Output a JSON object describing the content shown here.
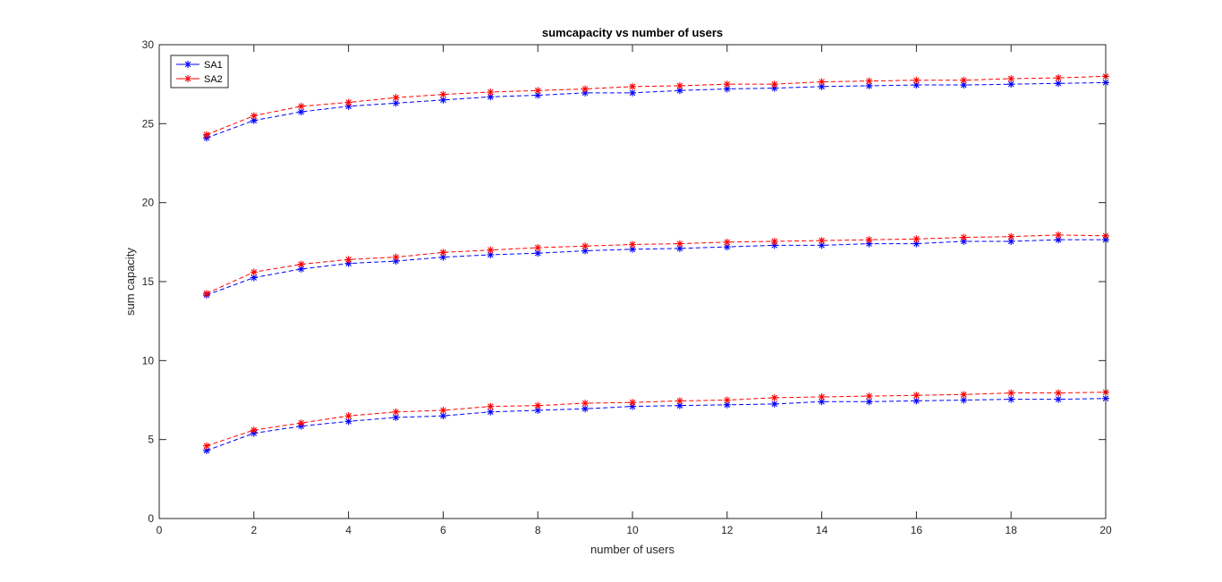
{
  "chart_data": {
    "type": "line",
    "title": "sumcapacity vs number of users",
    "xlabel": "number of users",
    "ylabel": "sum capacity",
    "xlim": [
      0,
      20
    ],
    "ylim": [
      0,
      30
    ],
    "xticks": [
      "0",
      "2",
      "4",
      "6",
      "8",
      "10",
      "12",
      "14",
      "16",
      "18",
      "20"
    ],
    "yticks": [
      "0",
      "5",
      "10",
      "15",
      "20",
      "25",
      "30"
    ],
    "grid": false,
    "legend_position": "top-left",
    "x": [
      1,
      2,
      3,
      4,
      5,
      6,
      7,
      8,
      9,
      10,
      11,
      12,
      13,
      14,
      15,
      16,
      17,
      18,
      19,
      20
    ],
    "series": [
      {
        "name": "SA1",
        "color": "#0000ff",
        "marker": "asterisk",
        "linestyle": "dashed",
        "group": "low",
        "values": [
          4.3,
          5.4,
          5.85,
          6.15,
          6.4,
          6.5,
          6.75,
          6.85,
          6.95,
          7.1,
          7.15,
          7.2,
          7.25,
          7.4,
          7.4,
          7.45,
          7.5,
          7.55,
          7.55,
          7.6
        ]
      },
      {
        "name": "SA2",
        "color": "#ff0000",
        "marker": "asterisk",
        "linestyle": "dashed",
        "group": "low",
        "values": [
          4.6,
          5.6,
          6.05,
          6.5,
          6.75,
          6.85,
          7.1,
          7.15,
          7.3,
          7.35,
          7.45,
          7.5,
          7.65,
          7.7,
          7.75,
          7.8,
          7.85,
          7.95,
          7.95,
          8.0
        ]
      },
      {
        "name": "SA1",
        "color": "#0000ff",
        "marker": "asterisk",
        "linestyle": "dashed",
        "group": "mid",
        "values": [
          14.15,
          15.25,
          15.8,
          16.15,
          16.3,
          16.55,
          16.7,
          16.8,
          16.95,
          17.05,
          17.1,
          17.2,
          17.3,
          17.3,
          17.4,
          17.4,
          17.55,
          17.55,
          17.65,
          17.65
        ]
      },
      {
        "name": "SA2",
        "color": "#ff0000",
        "marker": "asterisk",
        "linestyle": "dashed",
        "group": "mid",
        "values": [
          14.25,
          15.6,
          16.1,
          16.4,
          16.55,
          16.85,
          17.0,
          17.15,
          17.25,
          17.35,
          17.4,
          17.5,
          17.55,
          17.6,
          17.65,
          17.7,
          17.8,
          17.85,
          17.95,
          17.9
        ]
      },
      {
        "name": "SA1",
        "color": "#0000ff",
        "marker": "asterisk",
        "linestyle": "dashed",
        "group": "high",
        "values": [
          24.1,
          25.2,
          25.75,
          26.1,
          26.3,
          26.5,
          26.7,
          26.8,
          26.95,
          26.95,
          27.1,
          27.2,
          27.25,
          27.35,
          27.4,
          27.45,
          27.45,
          27.5,
          27.55,
          27.6
        ]
      },
      {
        "name": "SA2",
        "color": "#ff0000",
        "marker": "asterisk",
        "linestyle": "dashed",
        "group": "high",
        "values": [
          24.3,
          25.5,
          26.1,
          26.35,
          26.65,
          26.85,
          27.0,
          27.1,
          27.2,
          27.35,
          27.4,
          27.5,
          27.5,
          27.65,
          27.7,
          27.75,
          27.75,
          27.85,
          27.9,
          28.0
        ]
      }
    ],
    "legend": [
      {
        "label": "SA1",
        "color": "#0000ff"
      },
      {
        "label": "SA2",
        "color": "#ff0000"
      }
    ]
  }
}
